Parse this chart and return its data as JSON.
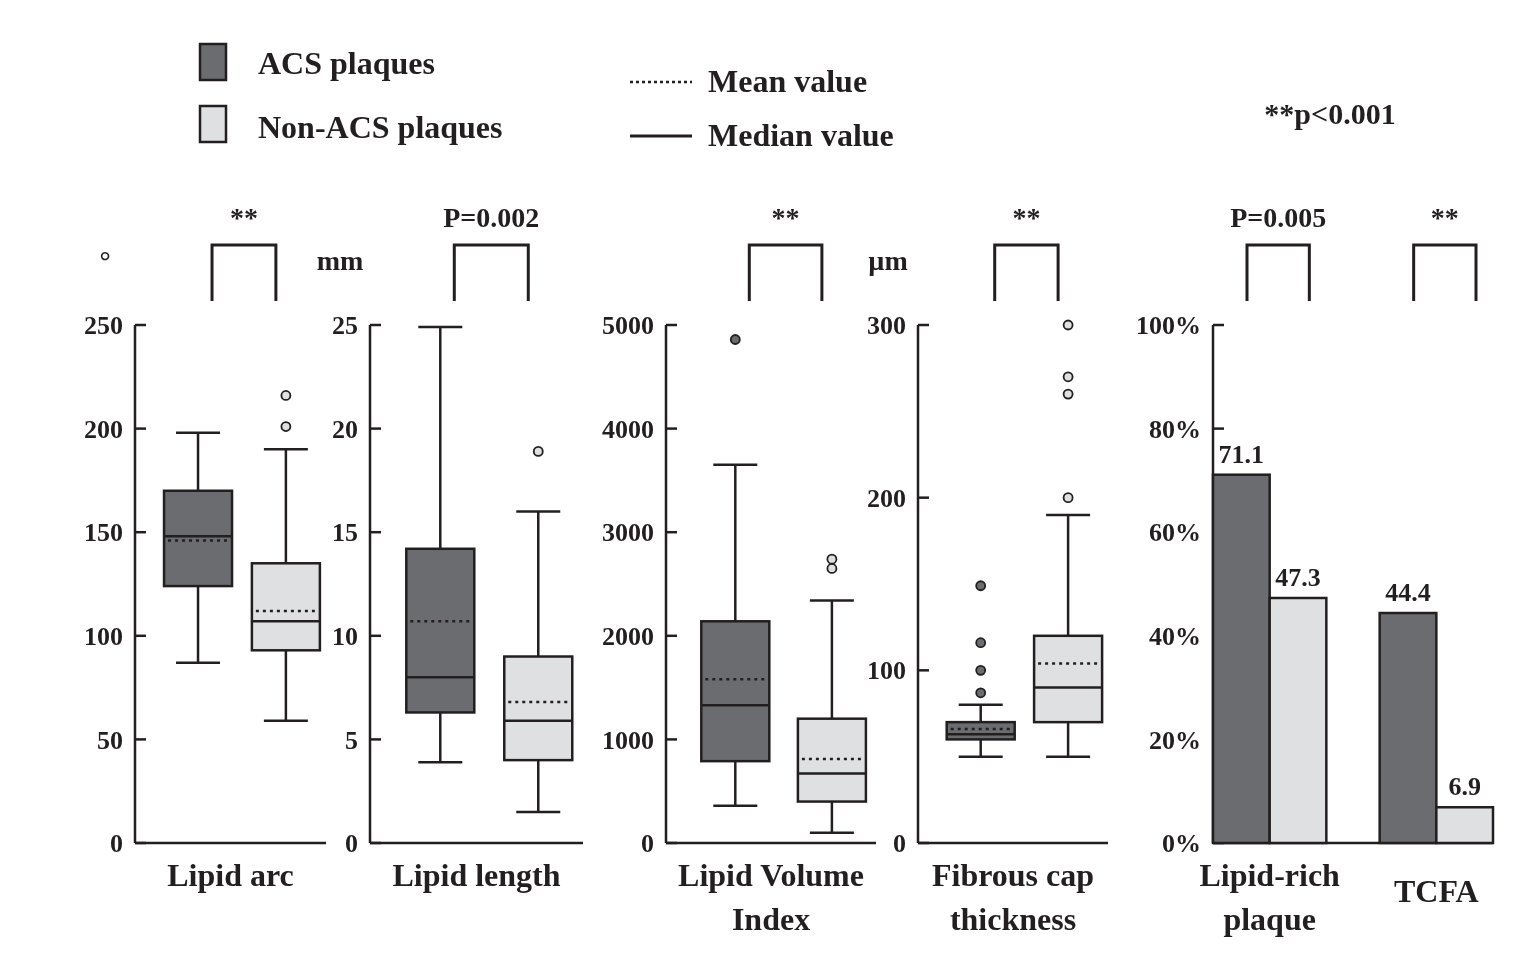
{
  "chart_data": [
    {
      "type": "box",
      "xlabel": "Lipid arc",
      "ylabel": "°",
      "categories": [
        null
      ],
      "ylim": [
        0,
        250
      ],
      "yticks": [
        0,
        50,
        100,
        150,
        200,
        250
      ],
      "legend": "top right",
      "annotations": [
        "**",
        "Mean value",
        "Median value"
      ],
      "series": [
        {
          "name": "ACS plaques",
          "color": "#6b6c70",
          "boxes": [
            {
              "low": 87,
              "q1": 124,
              "median": 148,
              "q3": 170,
              "high": 198,
              "mean": 146
            }
          ]
        },
        {
          "name": "Non-ACS plaques",
          "color": "#dfe0e2",
          "boxes": [
            {
              "low": 59,
              "q1": 93,
              "median": 107,
              "q3": 135,
              "high": 190,
              "mean": 112,
              "outliers": [
                201,
                216
              ]
            }
          ]
        }
      ]
    },
    {
      "type": "box",
      "xlabel": "Lipid length",
      "ylabel": "mm",
      "categories": [
        null
      ],
      "ylim": [
        0,
        25
      ],
      "yticks": [
        0,
        5,
        10,
        15,
        20,
        25
      ],
      "annotations": [
        "P=0.002"
      ],
      "series": [
        {
          "color": "#6b6c70",
          "boxes": [
            {
              "low": 3.9,
              "q1": 6.3,
              "median": 8.0,
              "q3": 14.2,
              "high": 24.9,
              "mean": 10.7
            }
          ]
        },
        {
          "color": "#dfe0e2",
          "boxes": [
            {
              "low": 1.5,
              "q1": 4.0,
              "median": 5.9,
              "q3": 9.0,
              "high": 16.0,
              "mean": 6.8,
              "outliers": [
                18.9
              ]
            }
          ]
        }
      ]
    },
    {
      "type": "box",
      "xlabel": "Lipid Volume Index",
      "categories": [
        null
      ],
      "ylim": [
        0,
        5000
      ],
      "yticks": [
        0,
        1000,
        2000,
        3000,
        4000,
        5000
      ],
      "annotations": [
        "**"
      ],
      "series": [
        {
          "color": "#6b6c70",
          "boxes": [
            {
              "low": 360,
              "q1": 790,
              "median": 1330,
              "q3": 2140,
              "high": 3650,
              "mean": 1580,
              "outliers": [
                4860
              ]
            }
          ]
        },
        {
          "color": "#dfe0e2",
          "boxes": [
            {
              "low": 100,
              "q1": 400,
              "median": 670,
              "q3": 1200,
              "high": 2340,
              "mean": 810,
              "outliers": [
                2650,
                2740
              ]
            }
          ]
        }
      ]
    },
    {
      "type": "box",
      "xlabel": "Fibrous cap thickness",
      "ylabel": "µm",
      "categories": [
        null
      ],
      "ylim": [
        0,
        300
      ],
      "yticks": [
        0,
        100,
        200,
        300
      ],
      "annotations": [
        "**"
      ],
      "series": [
        {
          "color": "#6b6c70",
          "boxes": [
            {
              "low": 50,
              "q1": 60,
              "median": 63,
              "q3": 70,
              "high": 80,
              "mean": 66,
              "outliers": [
                87,
                100,
                116,
                149
              ]
            }
          ]
        },
        {
          "color": "#dfe0e2",
          "boxes": [
            {
              "low": 50,
              "q1": 70,
              "median": 90,
              "q3": 120,
              "high": 190,
              "mean": 104,
              "outliers": [
                200,
                260,
                270,
                300
              ]
            }
          ]
        }
      ]
    },
    {
      "type": "bar",
      "categories": [
        "Lipid-rich plaque",
        "TCFA"
      ],
      "ylim": [
        0,
        100
      ],
      "yticks": [
        {
          "value": 0,
          "label": "0%"
        },
        {
          "value": 20,
          "label": "20%"
        },
        {
          "value": 40,
          "label": "40%"
        },
        {
          "value": 60,
          "label": "60%"
        },
        {
          "value": 80,
          "label": "80%"
        },
        {
          "value": 100,
          "label": "100%"
        }
      ],
      "data_labels": true,
      "annotations": [
        "P=0.005",
        "**",
        "**p<0.001"
      ],
      "series": [
        {
          "color": "#6b6c70",
          "values": [
            71.1,
            44.4
          ]
        },
        {
          "color": "#dfe0e2",
          "values": [
            47.3,
            6.9
          ]
        }
      ]
    }
  ]
}
